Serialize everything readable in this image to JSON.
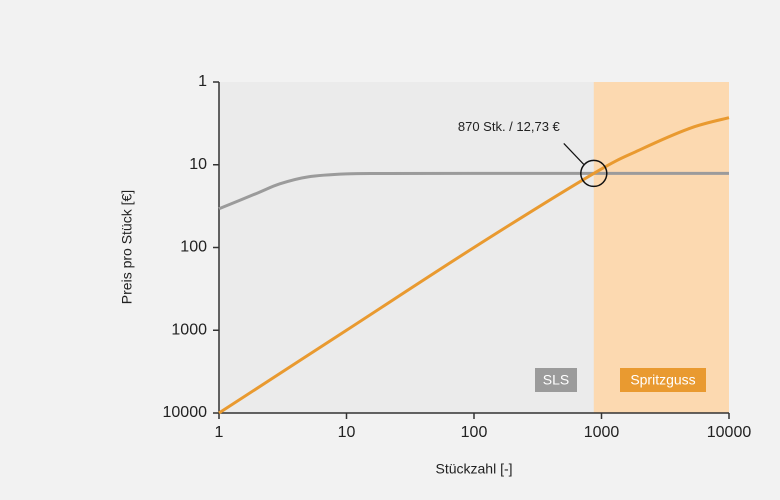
{
  "chart_data": {
    "type": "line",
    "x_label": "Stückzahl [-]",
    "y_label": "Preis pro Stück [€]",
    "xlog": true,
    "ylog": true,
    "xlim": [
      1,
      10000
    ],
    "ylim": [
      10000,
      1
    ],
    "xticks": [
      1,
      10,
      100,
      1000,
      10000
    ],
    "yticks": [
      1,
      10,
      100,
      1000,
      10000
    ],
    "highlight": {
      "xlim": [
        870,
        10000
      ],
      "color": "#fcd9b0"
    },
    "series": [
      {
        "name": "SLS",
        "color": "#9b9b9b",
        "x": [
          1,
          2,
          3,
          5,
          10,
          20,
          100,
          1000,
          10000
        ],
        "values": [
          34,
          22,
          17,
          14,
          12.9,
          12.75,
          12.73,
          12.73,
          12.73
        ]
      },
      {
        "name": "Spritzguss",
        "color": "#e99a30",
        "x": [
          1,
          10,
          100,
          870,
          2000,
          5000,
          10000
        ],
        "values": [
          10000,
          1000,
          100,
          12.73,
          6.6,
          3.6,
          2.7
        ]
      }
    ],
    "annotation": {
      "text": "870 Stk. / 12,73 €",
      "x": 870,
      "y": 12.73
    }
  }
}
